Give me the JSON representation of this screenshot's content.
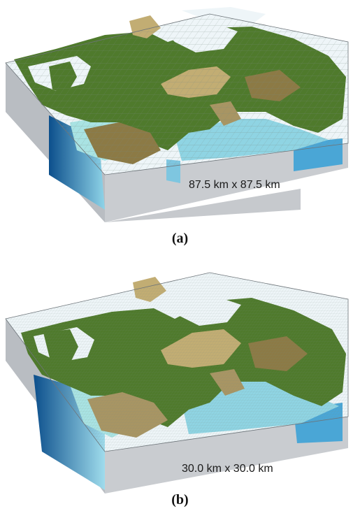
{
  "panels": [
    {
      "caption": "(a)",
      "resolution_label": "87.5 km x 87.5 km"
    },
    {
      "caption": "(b)",
      "resolution_label": "30.0 km x 30.0 km"
    }
  ],
  "colors": {
    "land": "#4f7a2c",
    "mountain": "#c2ad73",
    "highland": "#8c7a45",
    "shallow_sea": "#a9e3e3",
    "deep_sea": "#1f6fae",
    "open_cell": "#eef5f8",
    "block_side": "#b4b8bd",
    "block_front": "#c6c9cd"
  }
}
